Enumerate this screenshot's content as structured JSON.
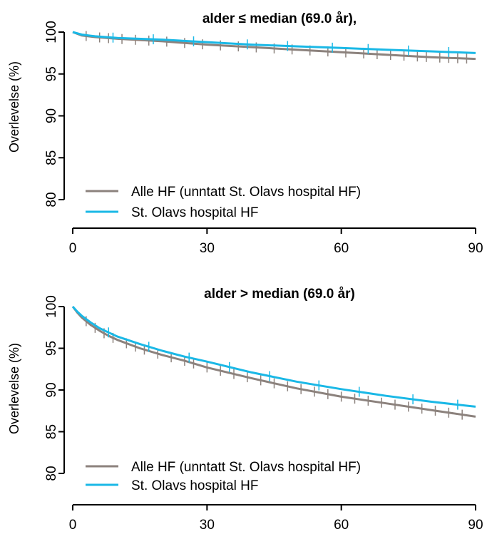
{
  "colors": {
    "all_hf": "#8c827d",
    "st_olavs": "#1ab8e6",
    "axis": "#000000"
  },
  "chart_data": [
    {
      "type": "line",
      "title": "alder ≤ median (69.0 år),",
      "xlabel": "",
      "ylabel": "Overlevelse (%)",
      "xlim": [
        0,
        90
      ],
      "ylim": [
        80,
        100
      ],
      "xticks": [
        "0",
        "30",
        "60",
        "90"
      ],
      "yticks": [
        "80",
        "85",
        "90",
        "95",
        "100"
      ],
      "grid": false,
      "legend_position": "bottom-left",
      "series": [
        {
          "name": "Alle HF (unntatt St. Olavs hospital HF)",
          "color_key": "all_hf",
          "x": [
            0,
            2,
            5,
            10,
            20,
            30,
            40,
            50,
            60,
            70,
            80,
            90
          ],
          "y": [
            100,
            99.6,
            99.4,
            99.2,
            98.9,
            98.5,
            98.2,
            97.9,
            97.6,
            97.3,
            97.0,
            96.8
          ],
          "censor_x": [
            3,
            6,
            8,
            11,
            14,
            17,
            21,
            25,
            29,
            33,
            37,
            41,
            45,
            49,
            53,
            57,
            61,
            65,
            68,
            71,
            74,
            77,
            79,
            82,
            84,
            86,
            88
          ]
        },
        {
          "name": "St. Olavs hospital HF",
          "color_key": "st_olavs",
          "x": [
            0,
            2,
            5,
            10,
            20,
            30,
            40,
            50,
            60,
            70,
            80,
            90
          ],
          "y": [
            100,
            99.7,
            99.5,
            99.3,
            99.1,
            98.8,
            98.5,
            98.3,
            98.1,
            97.9,
            97.7,
            97.5
          ],
          "censor_x": [
            9,
            18,
            27,
            39,
            48,
            58,
            66,
            75,
            84
          ]
        }
      ]
    },
    {
      "type": "line",
      "title": "alder > median (69.0 år)",
      "xlabel": "",
      "ylabel": "Overlevelse (%)",
      "xlim": [
        0,
        90
      ],
      "ylim": [
        80,
        100
      ],
      "xticks": [
        "0",
        "30",
        "60",
        "90"
      ],
      "yticks": [
        "80",
        "85",
        "90",
        "95",
        "100"
      ],
      "grid": false,
      "legend_position": "bottom-left",
      "series": [
        {
          "name": "Alle HF (unntatt St. Olavs hospital HF)",
          "color_key": "all_hf",
          "x": [
            0,
            1,
            2,
            4,
            6,
            8,
            10,
            15,
            20,
            25,
            30,
            40,
            50,
            60,
            70,
            80,
            90
          ],
          "y": [
            100,
            99.3,
            98.7,
            97.8,
            97.1,
            96.5,
            96.0,
            95.0,
            94.2,
            93.5,
            92.7,
            91.4,
            90.2,
            89.2,
            88.4,
            87.6,
            86.8
          ],
          "censor_x": [
            3,
            5,
            7,
            9,
            12,
            14,
            16,
            19,
            22,
            25,
            27,
            30,
            33,
            36,
            39,
            42,
            45,
            48,
            51,
            54,
            57,
            60,
            63,
            66,
            69,
            72,
            75,
            78,
            81,
            84,
            87
          ]
        },
        {
          "name": "St. Olavs hospital HF",
          "color_key": "st_olavs",
          "x": [
            0,
            1,
            2,
            4,
            6,
            8,
            10,
            15,
            20,
            25,
            30,
            40,
            50,
            60,
            70,
            80,
            90
          ],
          "y": [
            100,
            99.4,
            98.9,
            98.1,
            97.4,
            96.9,
            96.4,
            95.5,
            94.7,
            94.0,
            93.4,
            92.1,
            91.0,
            90.1,
            89.3,
            88.6,
            88.0
          ],
          "censor_x": [
            8,
            17,
            26,
            35,
            44,
            55,
            64,
            76,
            86
          ]
        }
      ]
    }
  ]
}
